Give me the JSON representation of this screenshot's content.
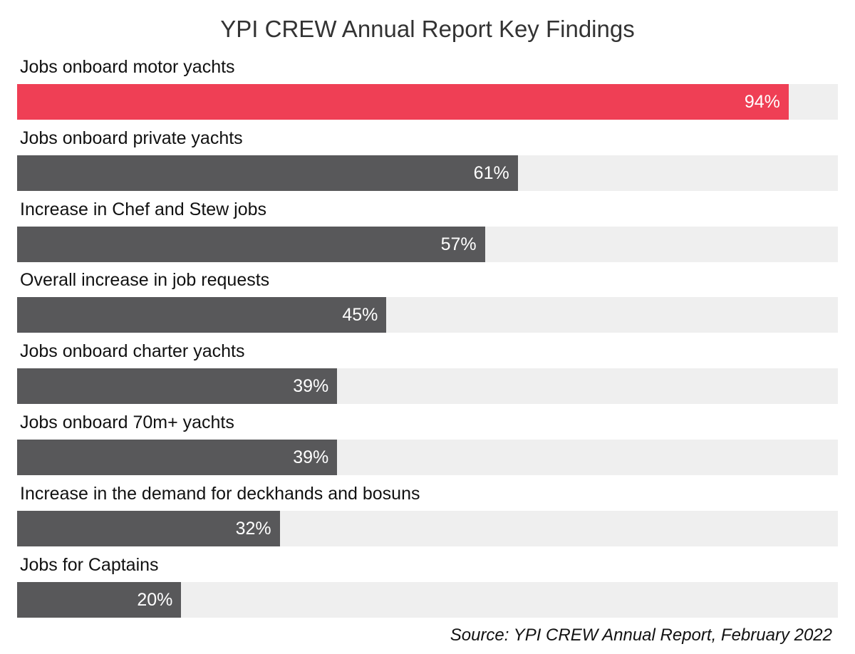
{
  "chart_data": {
    "type": "bar",
    "orientation": "horizontal",
    "title": "YPI CREW Annual Report Key Findings",
    "categories": [
      "Jobs onboard motor yachts",
      "Jobs onboard private yachts",
      "Increase in Chef and Stew jobs",
      "Overall increase in job requests",
      "Jobs onboard charter yachts",
      "Jobs onboard 70m+ yachts",
      "Increase in the demand for deckhands and bosuns",
      "Jobs for Captains"
    ],
    "values": [
      94,
      61,
      57,
      45,
      39,
      39,
      32,
      20
    ],
    "value_labels": [
      "94%",
      "61%",
      "57%",
      "45%",
      "39%",
      "39%",
      "32%",
      "20%"
    ],
    "xlim": [
      0,
      100
    ],
    "unit": "%",
    "highlight_index": 0,
    "colors": {
      "highlight": "#ef3f55",
      "bar": "#58585a",
      "track": "#efefef",
      "value_text": "#ffffff"
    },
    "grid": false,
    "source": "Source:  YPI CREW Annual Report, February 2022"
  }
}
